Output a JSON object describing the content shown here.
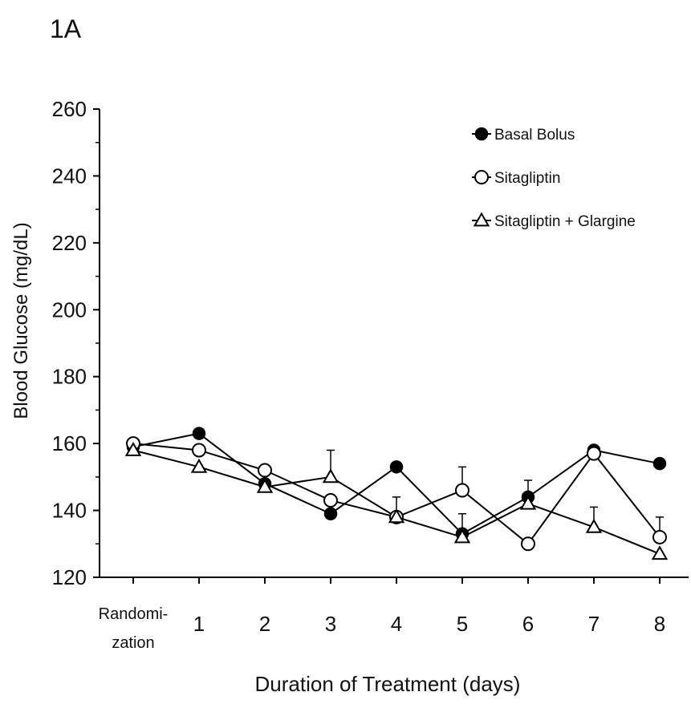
{
  "chart_data": {
    "type": "line",
    "panel_label": "1A",
    "title": "",
    "xlabel": "Duration of Treatment  (days)",
    "ylabel": "Blood Glucose (mg/dL)",
    "ylim": [
      120,
      260
    ],
    "yticks": [
      120,
      140,
      160,
      180,
      200,
      220,
      240,
      260
    ],
    "categories": [
      "Randomi-\nzation",
      "1",
      "2",
      "3",
      "4",
      "5",
      "6",
      "7",
      "8"
    ],
    "legend_position": "top-right",
    "grid": false,
    "series": [
      {
        "name": "Basal Bolus",
        "marker": "filled-circle",
        "values": [
          159,
          163,
          148,
          139,
          153,
          133,
          144,
          158,
          154
        ],
        "error_plus": [
          0,
          0,
          0,
          0,
          0,
          0,
          0,
          0,
          0
        ]
      },
      {
        "name": "Sitagliptin",
        "marker": "open-circle",
        "values": [
          160,
          158,
          152,
          143,
          138,
          146,
          130,
          157,
          132
        ],
        "error_plus": [
          0,
          0,
          0,
          0,
          0,
          7,
          0,
          0,
          6
        ]
      },
      {
        "name": "Sitagliptin + Glargine",
        "marker": "open-triangle",
        "values": [
          158,
          153,
          147,
          150,
          138,
          132,
          142,
          135,
          127
        ],
        "error_plus": [
          0,
          0,
          0,
          8,
          6,
          7,
          7,
          6,
          0
        ]
      }
    ]
  }
}
